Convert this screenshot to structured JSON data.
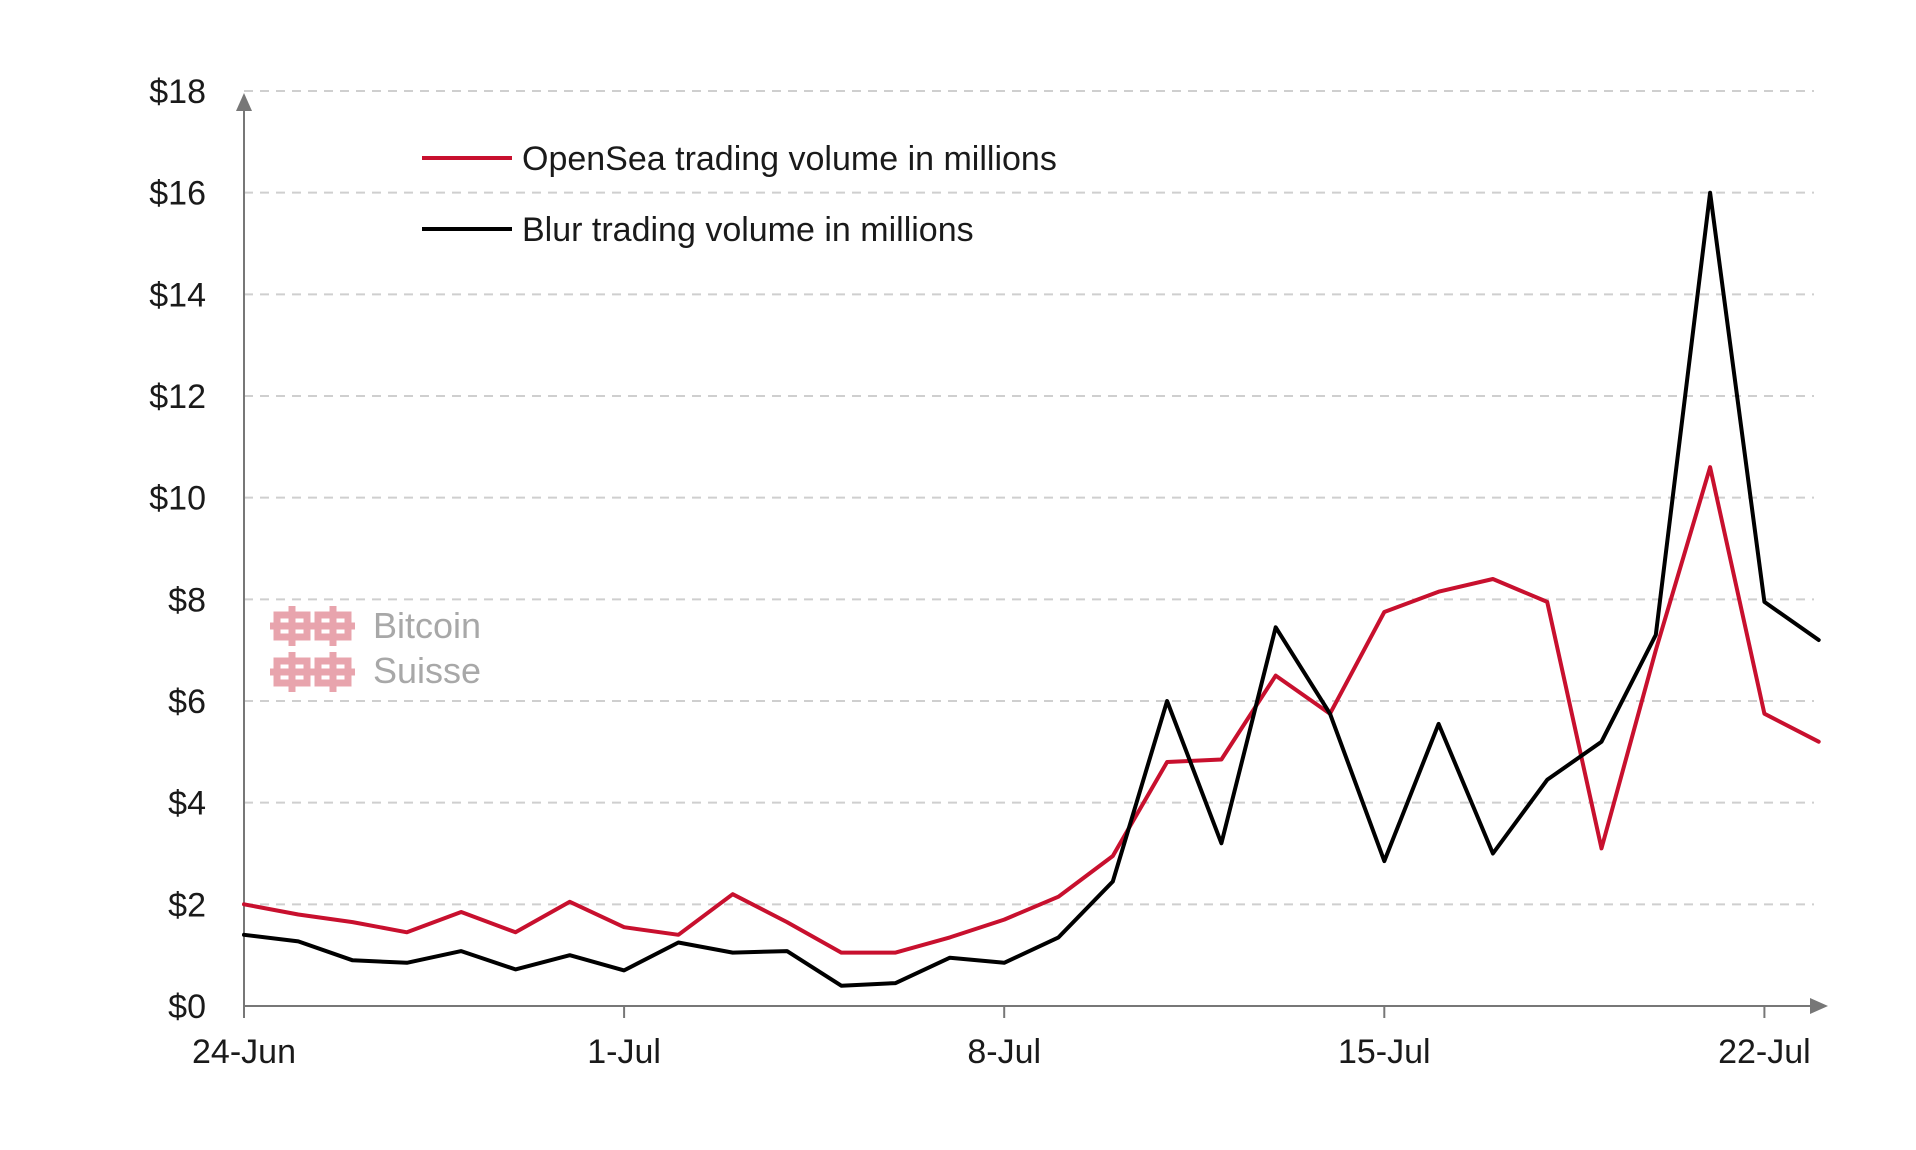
{
  "chart_data": {
    "type": "line",
    "title": "",
    "xlabel": "",
    "ylabel": "",
    "x_ticks": [
      "24-Jun",
      "1-Jul",
      "8-Jul",
      "15-Jul",
      "22-Jul"
    ],
    "y_ticks": [
      "$0",
      "$2",
      "$4",
      "$6",
      "$8",
      "$10",
      "$12",
      "$14",
      "$16",
      "$18"
    ],
    "ylim": [
      0,
      18
    ],
    "grid": "horizontal dashed",
    "legend_position": "top-left",
    "x": [
      "24-Jun",
      "25-Jun",
      "26-Jun",
      "27-Jun",
      "28-Jun",
      "29-Jun",
      "30-Jun",
      "1-Jul",
      "2-Jul",
      "3-Jul",
      "4-Jul",
      "5-Jul",
      "6-Jul",
      "7-Jul",
      "8-Jul",
      "9-Jul",
      "10-Jul",
      "11-Jul",
      "12-Jul",
      "13-Jul",
      "14-Jul",
      "15-Jul",
      "16-Jul",
      "17-Jul",
      "18-Jul",
      "19-Jul",
      "20-Jul",
      "21-Jul",
      "22-Jul",
      "23-Jul"
    ],
    "series": [
      {
        "name": "OpenSea trading volume in millions",
        "color": "#c8102e",
        "values": [
          2.0,
          1.8,
          1.65,
          1.45,
          1.85,
          1.45,
          2.05,
          1.55,
          1.4,
          2.2,
          1.65,
          1.05,
          1.05,
          1.35,
          1.7,
          2.15,
          2.95,
          4.8,
          4.85,
          6.5,
          5.75,
          7.75,
          8.15,
          8.4,
          7.95,
          3.1,
          7.0,
          10.6,
          5.75,
          5.2
        ]
      },
      {
        "name": "Blur trading volume in millions",
        "color": "#000000",
        "values": [
          1.4,
          1.27,
          0.9,
          0.85,
          1.08,
          0.72,
          1.0,
          0.7,
          1.25,
          1.05,
          1.08,
          0.4,
          0.45,
          0.95,
          0.85,
          1.35,
          2.45,
          6.0,
          3.2,
          7.45,
          5.75,
          2.85,
          5.55,
          3.0,
          4.45,
          5.2,
          7.3,
          16.0,
          7.95,
          7.2
        ]
      }
    ]
  },
  "watermark": {
    "line1": "Bitcoin",
    "line2": "Suisse",
    "logo_color": "#e8a4ad",
    "text_color": "#a8a8a8"
  },
  "colors": {
    "axis": "#777777",
    "grid": "#cfcfcf"
  }
}
